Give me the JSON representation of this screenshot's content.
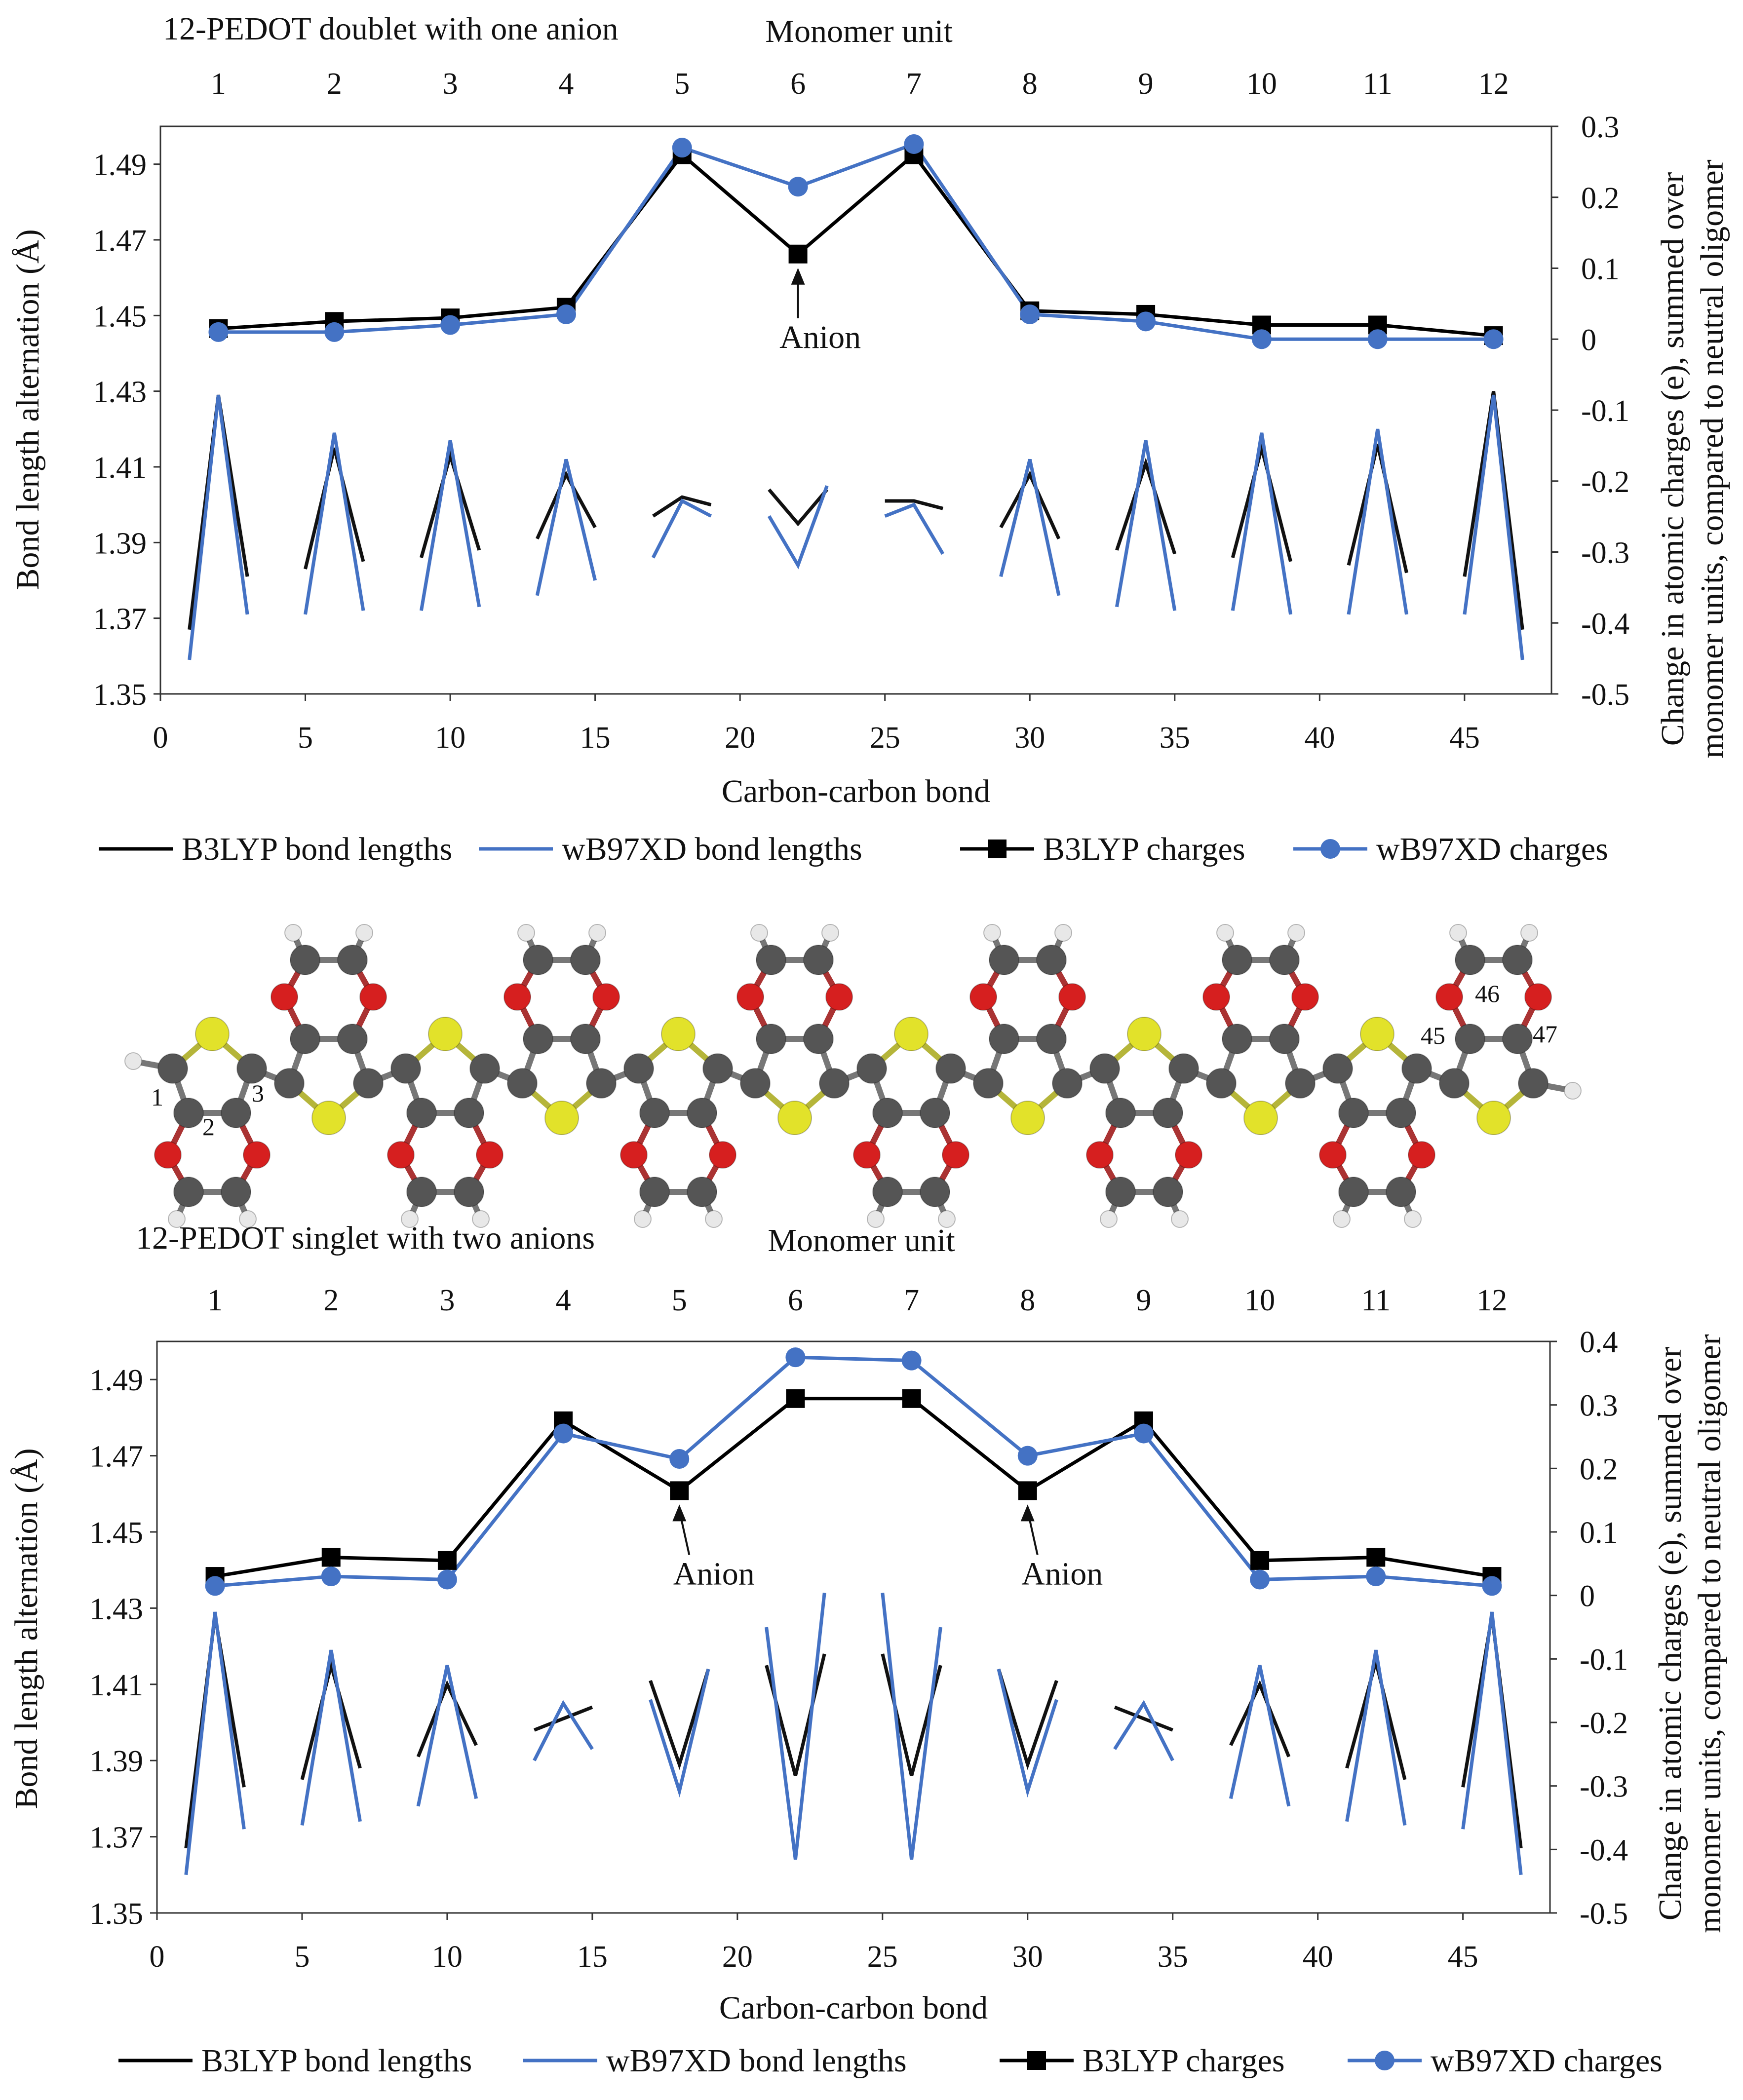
{
  "chart_data": [
    {
      "type": "line",
      "title": "12-PEDOT doublet with one anion",
      "top_axis_label": "Monomer unit",
      "top_ticks": [
        "1",
        "2",
        "3",
        "4",
        "5",
        "6",
        "7",
        "8",
        "9",
        "10",
        "11",
        "12"
      ],
      "xlabel": "Carbon-carbon bond",
      "ylabel": "Bond length alternation (Å)",
      "y2label": [
        "Change in atomic charges (e), summed over",
        "monomer units, compared to neutral oligomer"
      ],
      "xlim": [
        0,
        48
      ],
      "ylim": [
        1.35,
        1.5
      ],
      "y2lim": [
        -0.5,
        0.3
      ],
      "x_ticks": [
        "0",
        "5",
        "10",
        "15",
        "20",
        "25",
        "30",
        "35",
        "40",
        "45"
      ],
      "y_ticks": [
        "1.35",
        "1.37",
        "1.39",
        "1.41",
        "1.43",
        "1.45",
        "1.47",
        "1.49"
      ],
      "y2_ticks": [
        "-0.5",
        "-0.4",
        "-0.3",
        "-0.2",
        "-0.1",
        "0",
        "0.1",
        "0.2",
        "0.3"
      ],
      "bond_series": [
        {
          "name": "B3LYP bond lengths",
          "color": "#111111",
          "segments": [
            [
              1.367,
              1.429,
              1.381
            ],
            [
              1.383,
              1.415,
              1.385
            ],
            [
              1.386,
              1.413,
              1.388
            ],
            [
              1.391,
              1.408,
              1.394
            ],
            [
              1.397,
              1.402,
              1.4
            ],
            [
              1.404,
              1.395,
              1.404
            ],
            [
              1.401,
              1.401,
              1.399
            ],
            [
              1.394,
              1.408,
              1.391
            ],
            [
              1.388,
              1.411,
              1.387
            ],
            [
              1.386,
              1.415,
              1.385
            ],
            [
              1.384,
              1.416,
              1.382
            ],
            [
              1.381,
              1.43,
              1.367
            ]
          ]
        },
        {
          "name": "wB97XD bond lengths",
          "color": "#4472c4",
          "segments": [
            [
              1.359,
              1.429,
              1.371
            ],
            [
              1.371,
              1.419,
              1.372
            ],
            [
              1.372,
              1.417,
              1.373
            ],
            [
              1.376,
              1.412,
              1.38
            ],
            [
              1.386,
              1.401,
              1.397
            ],
            [
              1.397,
              1.384,
              1.405
            ],
            [
              1.397,
              1.4,
              1.387
            ],
            [
              1.381,
              1.412,
              1.376
            ],
            [
              1.373,
              1.417,
              1.372
            ],
            [
              1.372,
              1.419,
              1.371
            ],
            [
              1.371,
              1.42,
              1.371
            ],
            [
              1.371,
              1.429,
              1.359
            ]
          ]
        }
      ],
      "charge_series": [
        {
          "name": "B3LYP charges",
          "marker": "square",
          "color": "#000000",
          "x": [
            2,
            6,
            10,
            14,
            18,
            22,
            26,
            30,
            34,
            38,
            42,
            46
          ],
          "values": [
            0.015,
            0.025,
            0.03,
            0.045,
            0.26,
            0.12,
            0.26,
            0.04,
            0.035,
            0.02,
            0.02,
            0.005
          ]
        },
        {
          "name": "wB97XD charges",
          "marker": "circle",
          "color": "#4472c4",
          "x": [
            2,
            6,
            10,
            14,
            18,
            22,
            26,
            30,
            34,
            38,
            42,
            46
          ],
          "values": [
            0.01,
            0.01,
            0.02,
            0.035,
            0.27,
            0.215,
            0.275,
            0.035,
            0.025,
            0.0,
            0.0,
            0.0
          ]
        }
      ],
      "annotations": [
        {
          "text": "Anion",
          "x": 22,
          "y2": 0.12
        }
      ],
      "legend": [
        "B3LYP bond lengths",
        "wB97XD bond lengths",
        "B3LYP charges",
        "wB97XD charges"
      ]
    },
    {
      "type": "line",
      "title": "12-PEDOT singlet with two anions",
      "top_axis_label": "Monomer unit",
      "top_ticks": [
        "1",
        "2",
        "3",
        "4",
        "5",
        "6",
        "7",
        "8",
        "9",
        "10",
        "11",
        "12"
      ],
      "xlabel": "Carbon-carbon bond",
      "ylabel": "Bond length alternation (Å)",
      "y2label": [
        "Change in atomic charges (e), summed over",
        "monomer units, compared to neutral oligomer"
      ],
      "xlim": [
        0,
        48
      ],
      "ylim": [
        1.35,
        1.5
      ],
      "y2lim": [
        -0.5,
        0.4
      ],
      "x_ticks": [
        "0",
        "5",
        "10",
        "15",
        "20",
        "25",
        "30",
        "35",
        "40",
        "45"
      ],
      "y_ticks": [
        "1.35",
        "1.37",
        "1.39",
        "1.41",
        "1.43",
        "1.45",
        "1.47",
        "1.49"
      ],
      "y2_ticks": [
        "-0.5",
        "-0.4",
        "-0.3",
        "-0.2",
        "-0.1",
        "0",
        "0.1",
        "0.2",
        "0.3",
        "0.4"
      ],
      "bond_series": [
        {
          "name": "B3LYP bond lengths",
          "color": "#111111",
          "segments": [
            [
              1.367,
              1.428,
              1.383
            ],
            [
              1.385,
              1.415,
              1.388
            ],
            [
              1.391,
              1.41,
              1.394
            ],
            [
              1.398,
              1.401,
              1.404
            ],
            [
              1.411,
              1.389,
              1.414
            ],
            [
              1.415,
              1.386,
              1.418
            ],
            [
              1.418,
              1.386,
              1.415
            ],
            [
              1.414,
              1.389,
              1.411
            ],
            [
              1.404,
              1.401,
              1.398
            ],
            [
              1.394,
              1.41,
              1.391
            ],
            [
              1.388,
              1.416,
              1.385
            ],
            [
              1.383,
              1.428,
              1.367
            ]
          ]
        },
        {
          "name": "wB97XD bond lengths",
          "color": "#4472c4",
          "segments": [
            [
              1.36,
              1.429,
              1.372
            ],
            [
              1.373,
              1.419,
              1.374
            ],
            [
              1.378,
              1.415,
              1.38
            ],
            [
              1.39,
              1.405,
              1.393
            ],
            [
              1.406,
              1.382,
              1.414
            ],
            [
              1.425,
              1.364,
              1.434
            ],
            [
              1.434,
              1.364,
              1.425
            ],
            [
              1.414,
              1.382,
              1.406
            ],
            [
              1.393,
              1.405,
              1.39
            ],
            [
              1.38,
              1.415,
              1.378
            ],
            [
              1.374,
              1.419,
              1.373
            ],
            [
              1.372,
              1.429,
              1.36
            ]
          ]
        }
      ],
      "charge_series": [
        {
          "name": "B3LYP charges",
          "marker": "square",
          "color": "#000000",
          "x": [
            2,
            6,
            10,
            14,
            18,
            22,
            26,
            30,
            34,
            38,
            42,
            46
          ],
          "values": [
            0.03,
            0.06,
            0.055,
            0.275,
            0.165,
            0.31,
            0.31,
            0.165,
            0.275,
            0.055,
            0.06,
            0.03
          ]
        },
        {
          "name": "wB97XD charges",
          "marker": "circle",
          "color": "#4472c4",
          "x": [
            2,
            6,
            10,
            14,
            18,
            22,
            26,
            30,
            34,
            38,
            42,
            46
          ],
          "values": [
            0.015,
            0.03,
            0.025,
            0.255,
            0.215,
            0.375,
            0.37,
            0.22,
            0.255,
            0.025,
            0.03,
            0.015
          ]
        }
      ],
      "annotations": [
        {
          "text": "Anion",
          "x": 18,
          "y2": 0.165
        },
        {
          "text": "Anion",
          "x": 30,
          "y2": 0.165
        }
      ],
      "legend": [
        "B3LYP bond lengths",
        "wB97XD bond lengths",
        "B3LYP charges",
        "wB97XD charges"
      ]
    }
  ],
  "molecule": {
    "atom_labels": [
      "1",
      "2",
      "3",
      "45",
      "46",
      "47"
    ],
    "atom_colors": {
      "carbon": "#555555",
      "oxygen": "#d61f1f",
      "sulfur": "#e2e22a",
      "hydrogen": "#e8e8e8",
      "bond": "#8e8e4a"
    }
  }
}
